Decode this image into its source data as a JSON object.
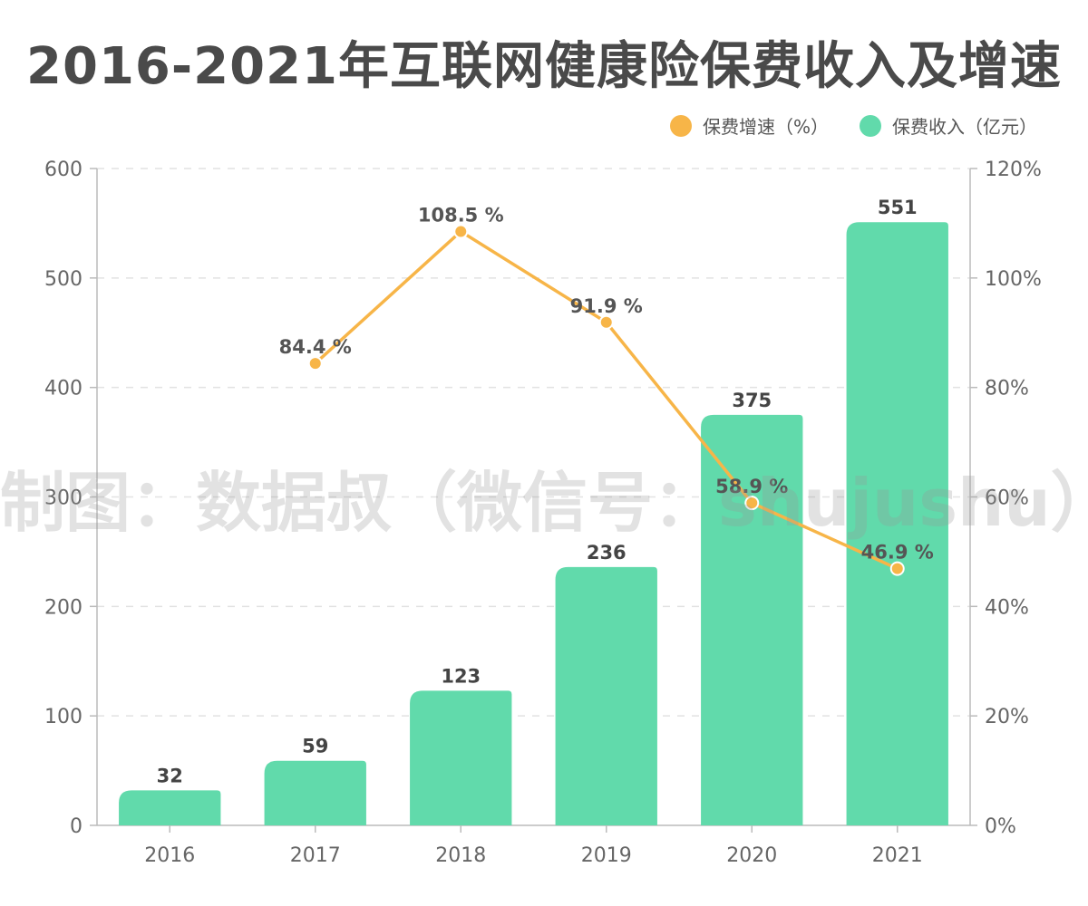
{
  "title": "2016-2021年互联网健康险保费收入及增速",
  "watermark": "制图：数据叔（微信号：shujushu）",
  "legend": [
    {
      "label": "保费增速（%）",
      "color": "#F7B548"
    },
    {
      "label": "保费收入（亿元）",
      "color": "#61DAAB"
    }
  ],
  "chart_data": {
    "type": "bar",
    "categories": [
      "2016",
      "2017",
      "2018",
      "2019",
      "2020",
      "2021"
    ],
    "series": [
      {
        "name": "保费收入（亿元）",
        "type": "bar",
        "axis": "left",
        "color": "#61DAAB",
        "values": [
          32,
          59,
          123,
          236,
          375,
          551
        ],
        "labels": [
          "32",
          "59",
          "123",
          "236",
          "375",
          "551"
        ]
      },
      {
        "name": "保费增速（%）",
        "type": "line",
        "axis": "right",
        "color": "#F7B548",
        "values": [
          null,
          84.4,
          108.5,
          91.9,
          58.9,
          46.9
        ],
        "labels": [
          "",
          "84.4 %",
          "108.5 %",
          "91.9 %",
          "58.9 %",
          "46.9 %"
        ]
      }
    ],
    "y_left": {
      "min": 0,
      "max": 600,
      "ticks": [
        "0",
        "100",
        "200",
        "300",
        "400",
        "500",
        "600"
      ]
    },
    "y_right": {
      "min": 0,
      "max": 120,
      "ticks": [
        "0%",
        "20%",
        "40%",
        "60%",
        "80%",
        "100%",
        "120%"
      ]
    },
    "grid": true,
    "legend_position": "top-right"
  }
}
